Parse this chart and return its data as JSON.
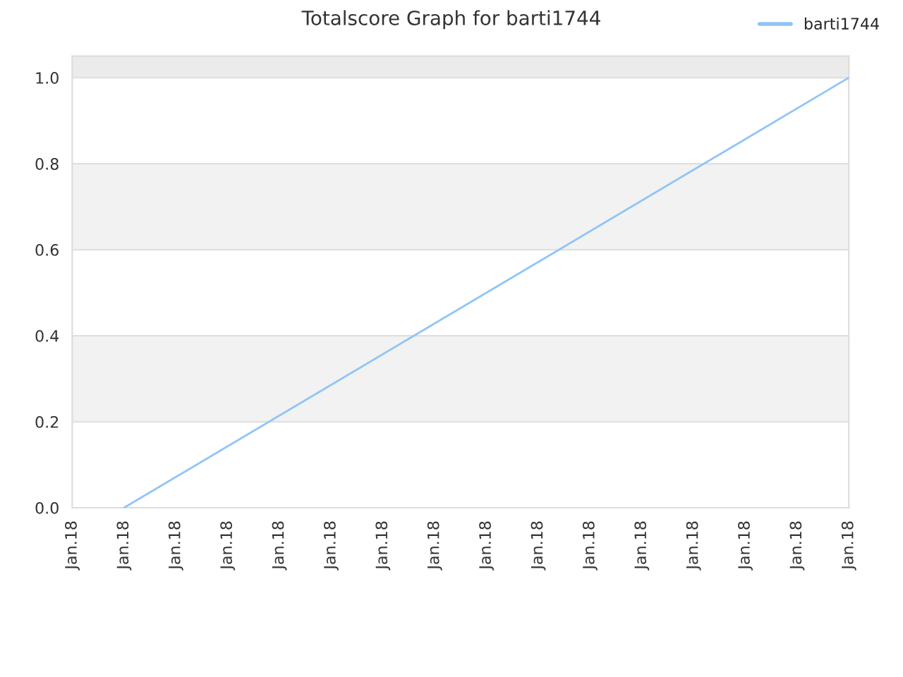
{
  "chart_data": {
    "type": "line",
    "title": "Totalscore Graph for barti1744",
    "categories": [
      "Jan.18",
      "Jan.18",
      "Jan.18",
      "Jan.18",
      "Jan.18",
      "Jan.18",
      "Jan.18",
      "Jan.18",
      "Jan.18",
      "Jan.18",
      "Jan.18",
      "Jan.18",
      "Jan.18",
      "Jan.18",
      "Jan.18",
      "Jan.18"
    ],
    "series": [
      {
        "name": "barti1744",
        "color": "#90c4f8",
        "values": [
          null,
          0,
          null,
          null,
          null,
          null,
          null,
          null,
          null,
          null,
          null,
          null,
          null,
          null,
          null,
          1
        ]
      }
    ],
    "ylim": [
      0,
      1.05
    ],
    "yticks": [
      {
        "value": 0,
        "label": "0.0"
      },
      {
        "value": 0.2,
        "label": "0.2"
      },
      {
        "value": 0.4,
        "label": "0.4"
      },
      {
        "value": 0.6,
        "label": "0.6"
      },
      {
        "value": 0.8,
        "label": "0.8"
      },
      {
        "value": 1,
        "label": "1.0"
      }
    ],
    "bands": [
      {
        "axis": "y",
        "from": 0.2,
        "to": 0.4,
        "color": "#f2f2f2"
      },
      {
        "axis": "y",
        "from": 0.6,
        "to": 0.8,
        "color": "#f2f2f2"
      },
      {
        "axis": "y",
        "from": 1.0,
        "to": 1.05,
        "color": "#ebebeb"
      }
    ],
    "grid": "y",
    "legend": "top right",
    "marker": "none",
    "line_style": "solid"
  }
}
